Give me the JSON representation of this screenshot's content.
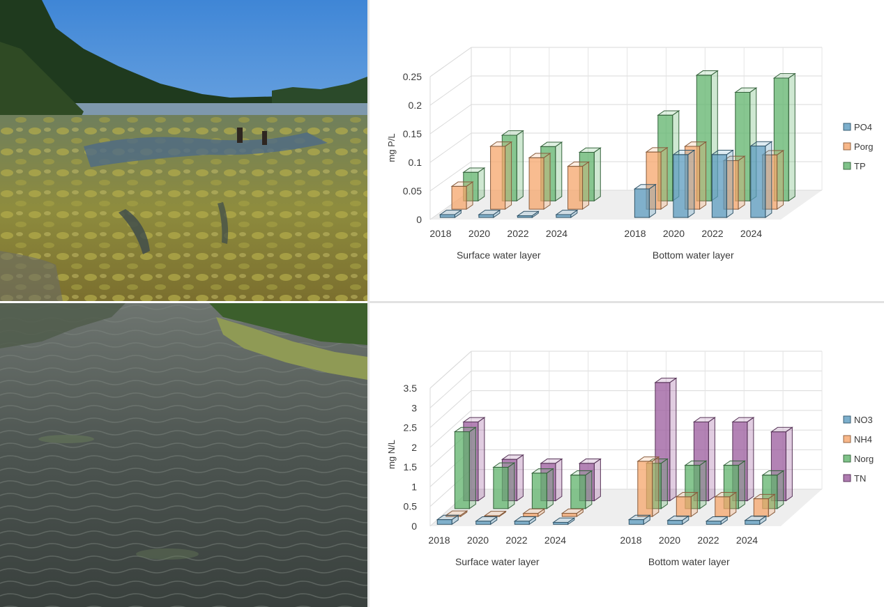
{
  "photos": [
    {
      "name": "lake-with-algal-mats-photo"
    },
    {
      "name": "lake-rippled-water-photo"
    }
  ],
  "chart_data": [
    {
      "type": "bar",
      "projection": "3d-clustered-column",
      "ylabel": "mg P/L",
      "ylim": [
        0,
        0.25
      ],
      "yticks": [
        "0",
        "0.05",
        "0.1",
        "0.15",
        "0.2",
        "0.25"
      ],
      "groups": [
        "Surface water layer",
        "Bottom water layer"
      ],
      "categories": [
        "2018",
        "2020",
        "2022",
        "2024"
      ],
      "legend": "right",
      "colors": {
        "PO4": "#5b9bbf",
        "Porg": "#f5a56b",
        "TP": "#5fb36b"
      },
      "series": [
        {
          "name": "PO4",
          "surface": [
            0.005,
            0.005,
            0.003,
            0.005
          ],
          "bottom": [
            0.05,
            0.11,
            0.11,
            0.125
          ]
        },
        {
          "name": "Porg",
          "surface": [
            0.04,
            0.11,
            0.09,
            0.075
          ],
          "bottom": [
            0.1,
            0.11,
            0.085,
            0.095
          ]
        },
        {
          "name": "TP",
          "surface": [
            0.05,
            0.115,
            0.095,
            0.085
          ],
          "bottom": [
            0.15,
            0.22,
            0.19,
            0.215
          ]
        }
      ]
    },
    {
      "type": "bar",
      "projection": "3d-clustered-column",
      "ylabel": "mg N/L",
      "ylim": [
        0,
        3.5
      ],
      "yticks": [
        "0",
        "0.5",
        "1",
        "1.5",
        "2",
        "2.5",
        "3",
        "3.5"
      ],
      "groups": [
        "Surface water layer",
        "Bottom water layer"
      ],
      "categories": [
        "2018",
        "2020",
        "2022",
        "2024"
      ],
      "legend": "right",
      "colors": {
        "NO3": "#5b9bbf",
        "NH4": "#f5a56b",
        "Norg": "#5fb36b",
        "TN": "#9a5a9c"
      },
      "series": [
        {
          "name": "NO3",
          "surface": [
            0.12,
            0.08,
            0.08,
            0.05
          ],
          "bottom": [
            0.12,
            0.1,
            0.08,
            0.1
          ]
        },
        {
          "name": "NH4",
          "surface": [
            0.03,
            0.02,
            0.08,
            0.08
          ],
          "bottom": [
            1.4,
            0.5,
            0.5,
            0.45
          ]
        },
        {
          "name": "Norg",
          "surface": [
            1.95,
            1.05,
            0.9,
            0.85
          ],
          "bottom": [
            1.15,
            1.1,
            1.1,
            0.85
          ]
        },
        {
          "name": "TN",
          "surface": [
            2.0,
            1.05,
            0.95,
            0.95
          ],
          "bottom": [
            3.0,
            2.0,
            2.0,
            1.75
          ]
        }
      ]
    }
  ]
}
